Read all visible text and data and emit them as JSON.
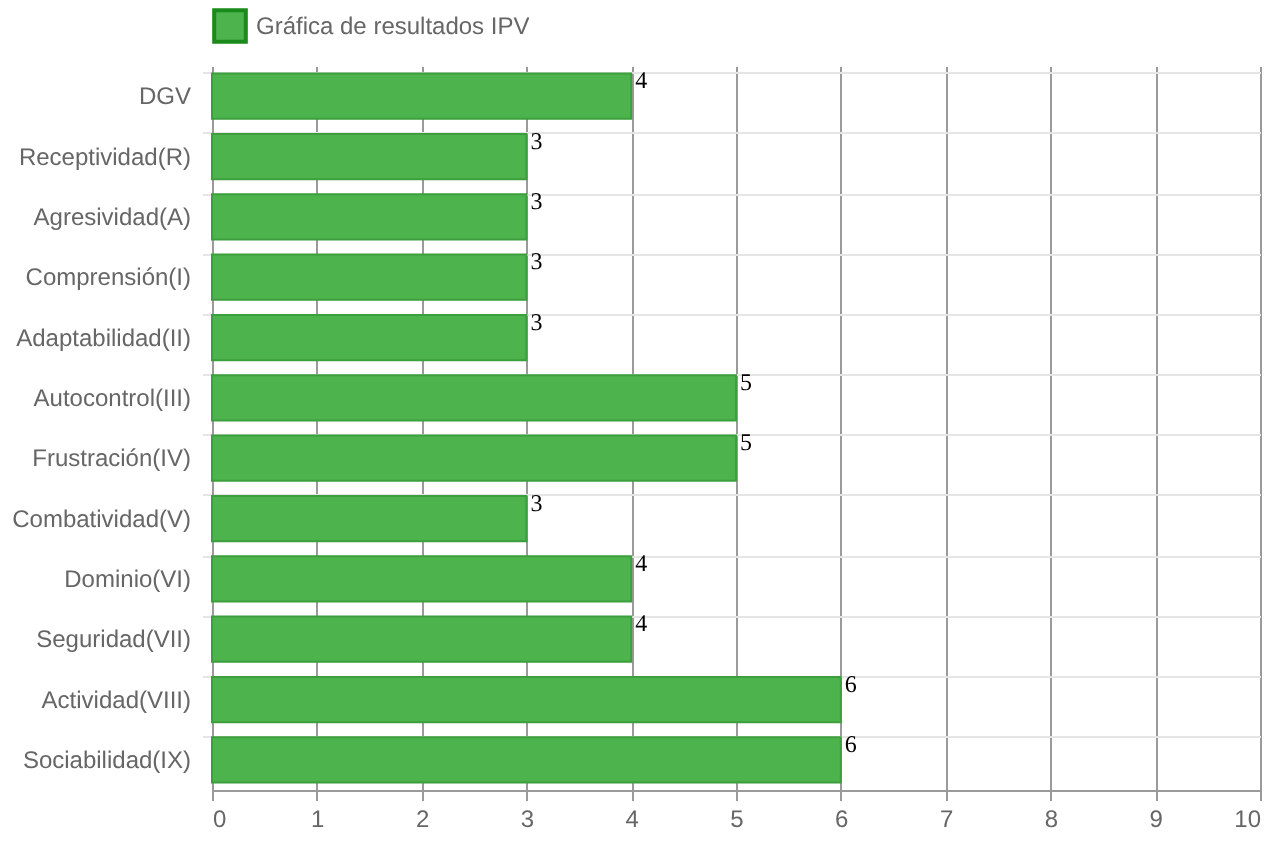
{
  "chart_data": {
    "type": "bar",
    "orientation": "horizontal",
    "categories": [
      "DGV",
      "Receptividad(R)",
      "Agresividad(A)",
      "Comprensión(I)",
      "Adaptabilidad(II)",
      "Autocontrol(III)",
      "Frustración(IV)",
      "Combatividad(V)",
      "Dominio(VI)",
      "Seguridad(VII)",
      "Actividad(VIII)",
      "Sociabilidad(IX)"
    ],
    "series": [
      {
        "name": "Gráfica de resultados IPV",
        "color": "#4db34d",
        "values": [
          4,
          3,
          3,
          3,
          3,
          5,
          5,
          3,
          4,
          4,
          6,
          6
        ]
      }
    ],
    "xlim": [
      0,
      10
    ],
    "xticks": [
      0,
      1,
      2,
      3,
      4,
      5,
      6,
      7,
      8,
      9,
      10
    ],
    "grid": true,
    "legend": "top",
    "data_labels": true
  }
}
